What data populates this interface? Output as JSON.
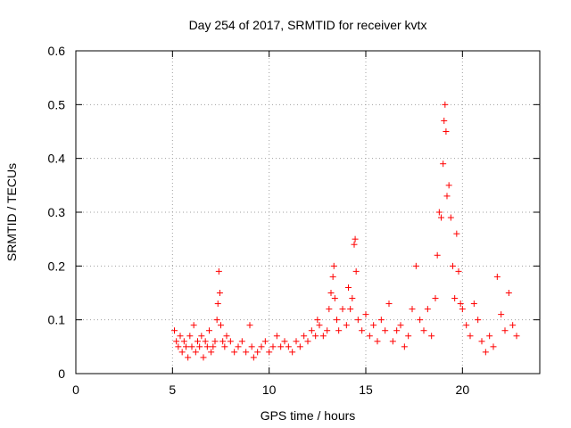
{
  "chart_data": {
    "type": "scatter",
    "title": "Day 254 of 2017, SRMTID for receiver kvtx",
    "xlabel": "GPS time / hours",
    "ylabel": "SRMTID / TECUs",
    "xlim": [
      0,
      24
    ],
    "ylim": [
      0,
      0.6
    ],
    "x_ticks": [
      0,
      5,
      10,
      15,
      20
    ],
    "y_ticks": [
      0,
      0.1,
      0.2,
      0.3,
      0.4,
      0.5,
      0.6
    ],
    "x_tick_labels": [
      "0",
      "5",
      "10",
      "15",
      "20"
    ],
    "y_tick_labels": [
      "0",
      "0.1",
      "0.2",
      "0.3",
      "0.4",
      "0.5",
      "0.6"
    ],
    "grid": true,
    "legend": "none",
    "marker": "+",
    "color": "#ff0000",
    "series": [
      {
        "name": "SRMTID",
        "points": [
          [
            5.1,
            0.08
          ],
          [
            5.2,
            0.06
          ],
          [
            5.3,
            0.05
          ],
          [
            5.4,
            0.07
          ],
          [
            5.5,
            0.04
          ],
          [
            5.6,
            0.06
          ],
          [
            5.7,
            0.05
          ],
          [
            5.8,
            0.03
          ],
          [
            5.9,
            0.07
          ],
          [
            6.0,
            0.05
          ],
          [
            6.1,
            0.09
          ],
          [
            6.2,
            0.04
          ],
          [
            6.3,
            0.06
          ],
          [
            6.4,
            0.05
          ],
          [
            6.5,
            0.07
          ],
          [
            6.6,
            0.03
          ],
          [
            6.7,
            0.06
          ],
          [
            6.8,
            0.05
          ],
          [
            6.9,
            0.08
          ],
          [
            7.0,
            0.04
          ],
          [
            7.1,
            0.05
          ],
          [
            7.2,
            0.06
          ],
          [
            7.3,
            0.1
          ],
          [
            7.35,
            0.13
          ],
          [
            7.4,
            0.19
          ],
          [
            7.45,
            0.15
          ],
          [
            7.5,
            0.09
          ],
          [
            7.6,
            0.06
          ],
          [
            7.7,
            0.05
          ],
          [
            7.8,
            0.07
          ],
          [
            8.0,
            0.06
          ],
          [
            8.2,
            0.04
          ],
          [
            8.4,
            0.05
          ],
          [
            8.6,
            0.06
          ],
          [
            8.8,
            0.04
          ],
          [
            9.0,
            0.09
          ],
          [
            9.1,
            0.05
          ],
          [
            9.2,
            0.03
          ],
          [
            9.4,
            0.04
          ],
          [
            9.6,
            0.05
          ],
          [
            9.8,
            0.06
          ],
          [
            10.0,
            0.04
          ],
          [
            10.2,
            0.05
          ],
          [
            10.4,
            0.07
          ],
          [
            10.6,
            0.05
          ],
          [
            10.8,
            0.06
          ],
          [
            11.0,
            0.05
          ],
          [
            11.2,
            0.04
          ],
          [
            11.4,
            0.06
          ],
          [
            11.6,
            0.05
          ],
          [
            11.8,
            0.07
          ],
          [
            12.0,
            0.06
          ],
          [
            12.2,
            0.08
          ],
          [
            12.4,
            0.07
          ],
          [
            12.5,
            0.1
          ],
          [
            12.6,
            0.09
          ],
          [
            12.8,
            0.07
          ],
          [
            13.0,
            0.08
          ],
          [
            13.1,
            0.12
          ],
          [
            13.2,
            0.15
          ],
          [
            13.3,
            0.18
          ],
          [
            13.35,
            0.2
          ],
          [
            13.4,
            0.14
          ],
          [
            13.5,
            0.1
          ],
          [
            13.6,
            0.08
          ],
          [
            13.8,
            0.12
          ],
          [
            14.0,
            0.09
          ],
          [
            14.1,
            0.16
          ],
          [
            14.2,
            0.12
          ],
          [
            14.3,
            0.14
          ],
          [
            14.4,
            0.24
          ],
          [
            14.45,
            0.25
          ],
          [
            14.5,
            0.19
          ],
          [
            14.6,
            0.1
          ],
          [
            14.8,
            0.08
          ],
          [
            15.0,
            0.11
          ],
          [
            15.2,
            0.07
          ],
          [
            15.4,
            0.09
          ],
          [
            15.6,
            0.06
          ],
          [
            15.8,
            0.1
          ],
          [
            16.0,
            0.08
          ],
          [
            16.2,
            0.13
          ],
          [
            16.4,
            0.06
          ],
          [
            16.6,
            0.08
          ],
          [
            16.8,
            0.09
          ],
          [
            17.0,
            0.05
          ],
          [
            17.2,
            0.07
          ],
          [
            17.4,
            0.12
          ],
          [
            17.6,
            0.2
          ],
          [
            17.8,
            0.1
          ],
          [
            18.0,
            0.08
          ],
          [
            18.2,
            0.12
          ],
          [
            18.4,
            0.07
          ],
          [
            18.6,
            0.14
          ],
          [
            18.7,
            0.22
          ],
          [
            18.8,
            0.3
          ],
          [
            18.9,
            0.29
          ],
          [
            19.0,
            0.39
          ],
          [
            19.05,
            0.47
          ],
          [
            19.1,
            0.5
          ],
          [
            19.15,
            0.45
          ],
          [
            19.2,
            0.33
          ],
          [
            19.3,
            0.35
          ],
          [
            19.4,
            0.29
          ],
          [
            19.5,
            0.2
          ],
          [
            19.6,
            0.14
          ],
          [
            19.7,
            0.26
          ],
          [
            19.8,
            0.19
          ],
          [
            19.9,
            0.13
          ],
          [
            20.0,
            0.12
          ],
          [
            20.2,
            0.09
          ],
          [
            20.4,
            0.07
          ],
          [
            20.6,
            0.13
          ],
          [
            20.8,
            0.1
          ],
          [
            21.0,
            0.06
          ],
          [
            21.2,
            0.04
          ],
          [
            21.4,
            0.07
          ],
          [
            21.6,
            0.05
          ],
          [
            21.8,
            0.18
          ],
          [
            22.0,
            0.11
          ],
          [
            22.2,
            0.08
          ],
          [
            22.4,
            0.15
          ],
          [
            22.6,
            0.09
          ],
          [
            22.8,
            0.07
          ]
        ]
      }
    ]
  }
}
